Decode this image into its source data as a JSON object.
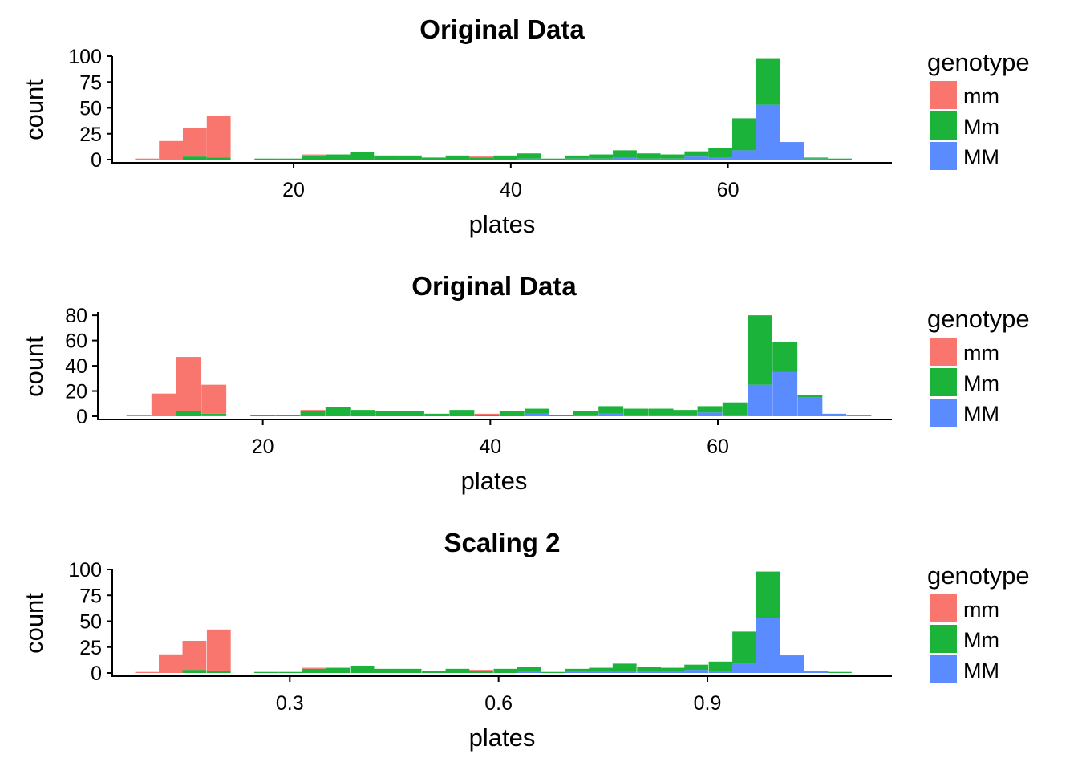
{
  "palette": {
    "mm": "#F8766D",
    "Mm": "#1BB33A",
    "MM": "#5A8BFF"
  },
  "chart_data": [
    {
      "type": "bar",
      "subtype": "stacked-histogram",
      "title": "Original Data",
      "xlabel": "plates",
      "ylabel": "count",
      "legend": {
        "title": "genotype",
        "position": "right",
        "entries": [
          "mm",
          "Mm",
          "MM"
        ]
      },
      "xlim": [
        3.3,
        75.1
      ],
      "ylim": [
        0,
        100
      ],
      "xticks": [
        20,
        40,
        60
      ],
      "xtick_labels": [
        "20",
        "40",
        "60"
      ],
      "yticks": [
        0,
        25,
        50,
        75,
        100
      ],
      "ytick_labels": [
        "0",
        "25",
        "50",
        "75",
        "100"
      ],
      "bin_width": 2.2,
      "grid": false,
      "bins": [
        {
          "x": 6.5,
          "mm": 1,
          "Mm": 0,
          "MM": 0
        },
        {
          "x": 8.7,
          "mm": 18,
          "Mm": 0,
          "MM": 0
        },
        {
          "x": 10.9,
          "mm": 28,
          "Mm": 3,
          "MM": 0
        },
        {
          "x": 13.1,
          "mm": 40,
          "Mm": 2,
          "MM": 0
        },
        {
          "x": 17.5,
          "mm": 0,
          "Mm": 1,
          "MM": 0
        },
        {
          "x": 19.7,
          "mm": 0,
          "Mm": 1,
          "MM": 0
        },
        {
          "x": 21.9,
          "mm": 1,
          "Mm": 4,
          "MM": 0
        },
        {
          "x": 24.1,
          "mm": 0,
          "Mm": 5,
          "MM": 0
        },
        {
          "x": 26.3,
          "mm": 0,
          "Mm": 7,
          "MM": 0
        },
        {
          "x": 28.5,
          "mm": 0,
          "Mm": 4,
          "MM": 0
        },
        {
          "x": 30.7,
          "mm": 0,
          "Mm": 4,
          "MM": 0
        },
        {
          "x": 32.9,
          "mm": 0,
          "Mm": 2,
          "MM": 0
        },
        {
          "x": 35.1,
          "mm": 0,
          "Mm": 4,
          "MM": 0
        },
        {
          "x": 37.3,
          "mm": 1,
          "Mm": 2,
          "MM": 0
        },
        {
          "x": 39.5,
          "mm": 0,
          "Mm": 4,
          "MM": 0
        },
        {
          "x": 41.7,
          "mm": 0,
          "Mm": 5,
          "MM": 1
        },
        {
          "x": 43.9,
          "mm": 0,
          "Mm": 1,
          "MM": 0
        },
        {
          "x": 46.1,
          "mm": 0,
          "Mm": 3,
          "MM": 1
        },
        {
          "x": 48.3,
          "mm": 0,
          "Mm": 4,
          "MM": 1
        },
        {
          "x": 50.5,
          "mm": 0,
          "Mm": 7,
          "MM": 2
        },
        {
          "x": 52.7,
          "mm": 0,
          "Mm": 5,
          "MM": 1
        },
        {
          "x": 54.9,
          "mm": 0,
          "Mm": 4,
          "MM": 1
        },
        {
          "x": 57.1,
          "mm": 0,
          "Mm": 5,
          "MM": 3
        },
        {
          "x": 59.3,
          "mm": 0,
          "Mm": 9,
          "MM": 2
        },
        {
          "x": 61.5,
          "mm": 0,
          "Mm": 31,
          "MM": 9
        },
        {
          "x": 63.7,
          "mm": 0,
          "Mm": 45,
          "MM": 53
        },
        {
          "x": 65.9,
          "mm": 0,
          "Mm": 0,
          "MM": 17
        },
        {
          "x": 68.1,
          "mm": 0,
          "Mm": 1,
          "MM": 1
        },
        {
          "x": 70.3,
          "mm": 0,
          "Mm": 1,
          "MM": 0
        }
      ]
    },
    {
      "type": "bar",
      "subtype": "stacked-histogram",
      "title": "Original Data",
      "xlabel": "plates",
      "ylabel": "count",
      "legend": {
        "title": "genotype",
        "position": "right",
        "entries": [
          "mm",
          "Mm",
          "MM"
        ]
      },
      "xlim": [
        5.5,
        75.3
      ],
      "ylim": [
        0,
        82
      ],
      "xticks": [
        20,
        40,
        60
      ],
      "xtick_labels": [
        "20",
        "40",
        "60"
      ],
      "yticks": [
        0,
        20,
        40,
        60,
        80
      ],
      "ytick_labels": [
        "0",
        "20",
        "40",
        "60",
        "80"
      ],
      "bin_width": 2.18,
      "grid": false,
      "bins": [
        {
          "x": 9.1,
          "mm": 1,
          "Mm": 0,
          "MM": 0
        },
        {
          "x": 11.3,
          "mm": 18,
          "Mm": 0,
          "MM": 0
        },
        {
          "x": 13.5,
          "mm": 43,
          "Mm": 4,
          "MM": 0
        },
        {
          "x": 15.7,
          "mm": 23,
          "Mm": 1,
          "MM": 1
        },
        {
          "x": 20.0,
          "mm": 0,
          "Mm": 1,
          "MM": 0
        },
        {
          "x": 22.2,
          "mm": 0,
          "Mm": 1,
          "MM": 0
        },
        {
          "x": 24.4,
          "mm": 1,
          "Mm": 4,
          "MM": 0
        },
        {
          "x": 26.6,
          "mm": 0,
          "Mm": 7,
          "MM": 0
        },
        {
          "x": 28.8,
          "mm": 0,
          "Mm": 5,
          "MM": 0
        },
        {
          "x": 31.0,
          "mm": 0,
          "Mm": 4,
          "MM": 0
        },
        {
          "x": 33.1,
          "mm": 0,
          "Mm": 4,
          "MM": 0
        },
        {
          "x": 35.3,
          "mm": 0,
          "Mm": 2,
          "MM": 0
        },
        {
          "x": 37.5,
          "mm": 0,
          "Mm": 5,
          "MM": 0
        },
        {
          "x": 39.7,
          "mm": 1,
          "Mm": 1,
          "MM": 0
        },
        {
          "x": 41.9,
          "mm": 0,
          "Mm": 4,
          "MM": 0
        },
        {
          "x": 44.1,
          "mm": 0,
          "Mm": 4,
          "MM": 2
        },
        {
          "x": 46.2,
          "mm": 0,
          "Mm": 1,
          "MM": 0
        },
        {
          "x": 48.4,
          "mm": 0,
          "Mm": 3,
          "MM": 1
        },
        {
          "x": 50.6,
          "mm": 0,
          "Mm": 6,
          "MM": 2
        },
        {
          "x": 52.8,
          "mm": 0,
          "Mm": 5,
          "MM": 1
        },
        {
          "x": 55.0,
          "mm": 0,
          "Mm": 5,
          "MM": 1
        },
        {
          "x": 57.1,
          "mm": 0,
          "Mm": 4,
          "MM": 1
        },
        {
          "x": 59.3,
          "mm": 0,
          "Mm": 5,
          "MM": 3
        },
        {
          "x": 61.5,
          "mm": 0,
          "Mm": 10,
          "MM": 1
        },
        {
          "x": 63.7,
          "mm": 0,
          "Mm": 55,
          "MM": 25
        },
        {
          "x": 65.9,
          "mm": 0,
          "Mm": 24,
          "MM": 35
        },
        {
          "x": 68.1,
          "mm": 0,
          "Mm": 2,
          "MM": 15
        },
        {
          "x": 70.2,
          "mm": 0,
          "Mm": 0,
          "MM": 2
        },
        {
          "x": 72.4,
          "mm": 0,
          "Mm": 0,
          "MM": 1
        }
      ]
    },
    {
      "type": "bar",
      "subtype": "stacked-histogram",
      "title": "Scaling 2",
      "xlabel": "plates",
      "ylabel": "count",
      "legend": {
        "title": "genotype",
        "position": "right",
        "entries": [
          "mm",
          "Mm",
          "MM"
        ]
      },
      "xlim": [
        0.045,
        1.165
      ],
      "ylim": [
        0,
        100
      ],
      "xticks": [
        0.3,
        0.6,
        0.9
      ],
      "xtick_labels": [
        "0.3",
        "0.6",
        "0.9"
      ],
      "yticks": [
        0,
        25,
        50,
        75,
        100
      ],
      "ytick_labels": [
        "0",
        "25",
        "50",
        "75",
        "100"
      ],
      "bin_width": 0.0343,
      "grid": false,
      "bins": [
        {
          "x": 0.095,
          "mm": 1,
          "Mm": 0,
          "MM": 0
        },
        {
          "x": 0.129,
          "mm": 18,
          "Mm": 0,
          "MM": 0
        },
        {
          "x": 0.163,
          "mm": 28,
          "Mm": 3,
          "MM": 0
        },
        {
          "x": 0.198,
          "mm": 40,
          "Mm": 2,
          "MM": 0
        },
        {
          "x": 0.266,
          "mm": 0,
          "Mm": 1,
          "MM": 0
        },
        {
          "x": 0.301,
          "mm": 0,
          "Mm": 1,
          "MM": 0
        },
        {
          "x": 0.335,
          "mm": 1,
          "Mm": 4,
          "MM": 0
        },
        {
          "x": 0.369,
          "mm": 0,
          "Mm": 5,
          "MM": 0
        },
        {
          "x": 0.404,
          "mm": 0,
          "Mm": 7,
          "MM": 0
        },
        {
          "x": 0.438,
          "mm": 0,
          "Mm": 4,
          "MM": 0
        },
        {
          "x": 0.472,
          "mm": 0,
          "Mm": 4,
          "MM": 0
        },
        {
          "x": 0.507,
          "mm": 0,
          "Mm": 2,
          "MM": 0
        },
        {
          "x": 0.541,
          "mm": 0,
          "Mm": 4,
          "MM": 0
        },
        {
          "x": 0.575,
          "mm": 1,
          "Mm": 2,
          "MM": 0
        },
        {
          "x": 0.61,
          "mm": 0,
          "Mm": 4,
          "MM": 0
        },
        {
          "x": 0.644,
          "mm": 0,
          "Mm": 5,
          "MM": 1
        },
        {
          "x": 0.678,
          "mm": 0,
          "Mm": 1,
          "MM": 0
        },
        {
          "x": 0.713,
          "mm": 0,
          "Mm": 3,
          "MM": 1
        },
        {
          "x": 0.747,
          "mm": 0,
          "Mm": 4,
          "MM": 1
        },
        {
          "x": 0.781,
          "mm": 0,
          "Mm": 7,
          "MM": 2
        },
        {
          "x": 0.816,
          "mm": 0,
          "Mm": 5,
          "MM": 1
        },
        {
          "x": 0.85,
          "mm": 0,
          "Mm": 4,
          "MM": 1
        },
        {
          "x": 0.884,
          "mm": 0,
          "Mm": 5,
          "MM": 3
        },
        {
          "x": 0.919,
          "mm": 0,
          "Mm": 9,
          "MM": 2
        },
        {
          "x": 0.953,
          "mm": 0,
          "Mm": 31,
          "MM": 9
        },
        {
          "x": 0.987,
          "mm": 0,
          "Mm": 45,
          "MM": 53
        },
        {
          "x": 1.022,
          "mm": 0,
          "Mm": 0,
          "MM": 17
        },
        {
          "x": 1.056,
          "mm": 0,
          "Mm": 1,
          "MM": 1
        },
        {
          "x": 1.09,
          "mm": 0,
          "Mm": 1,
          "MM": 0
        }
      ]
    }
  ]
}
